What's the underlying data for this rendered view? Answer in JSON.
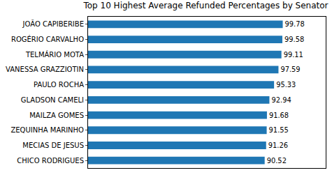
{
  "chart_data": {
    "type": "bar",
    "orientation": "horizontal",
    "title": "Top 10 Highest Average Refunded Percentages by Senator",
    "categories": [
      "JOÃO CAPIBERIBE",
      "ROGÉRIO CARVALHO",
      "TELMÁRIO MOTA",
      "VANESSA GRAZZIOTIN",
      "PAULO ROCHA",
      "GLADSON CAMELI",
      "MAILZA GOMES",
      "ZEQUINHA MARINHO",
      "MECIAS DE JESUS",
      "CHICO RODRIGUES"
    ],
    "values": [
      99.78,
      99.58,
      99.11,
      97.59,
      95.33,
      92.94,
      91.68,
      91.55,
      91.26,
      90.52
    ],
    "color": "#1f77b4",
    "xlim": [
      0,
      121.8
    ],
    "data_labels": true,
    "tick_labels": "y",
    "grid": false
  }
}
